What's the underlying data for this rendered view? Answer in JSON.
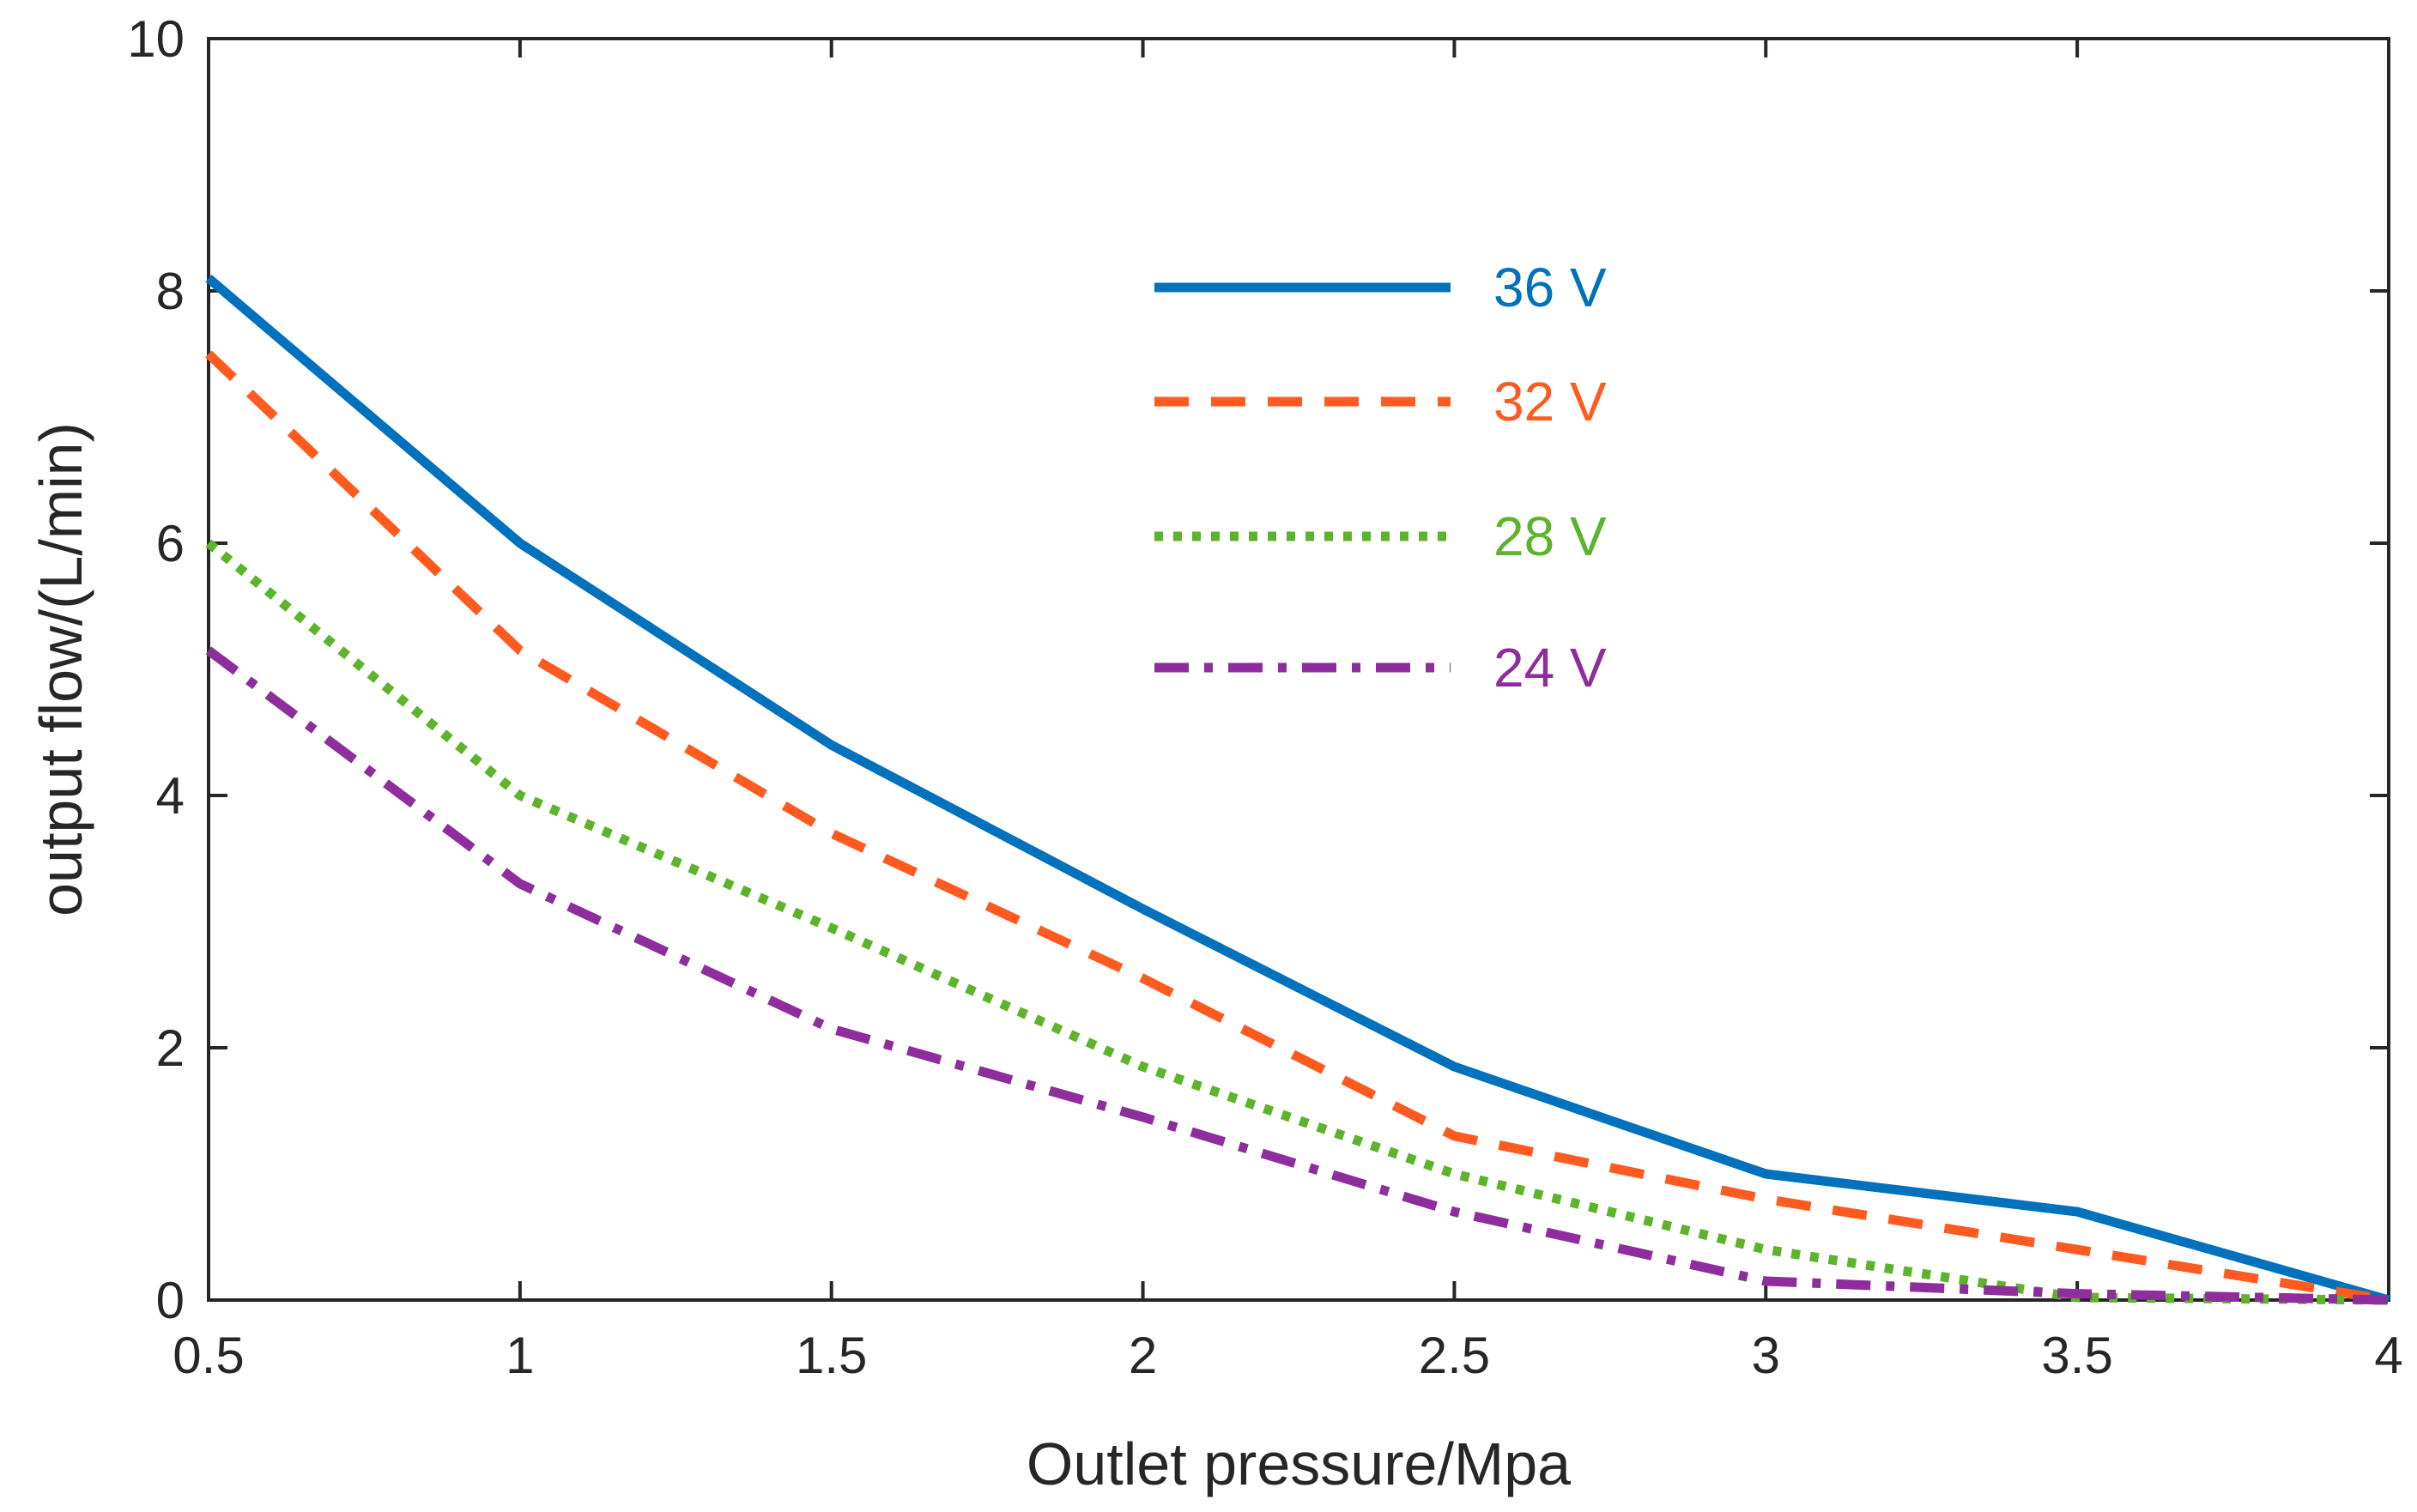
{
  "chart_data": {
    "type": "line",
    "title": "",
    "xlabel": "Outlet pressure/Mpa",
    "ylabel": "output flow/(L/min)",
    "xlim": [
      0.5,
      4
    ],
    "ylim": [
      0,
      10
    ],
    "xticks": [
      0.5,
      1,
      1.5,
      2,
      2.5,
      3,
      3.5,
      4
    ],
    "xtick_labels": [
      "0.5",
      "1",
      "1.5",
      "2",
      "2.5",
      "3",
      "3.5",
      "4"
    ],
    "yticks": [
      0,
      2,
      4,
      6,
      8,
      10
    ],
    "ytick_labels": [
      "0",
      "2",
      "4",
      "6",
      "8",
      "10"
    ],
    "grid": false,
    "legend_position": "top-center",
    "x": [
      0.5,
      1,
      1.5,
      2,
      2.5,
      3,
      3.5,
      4
    ],
    "series": [
      {
        "name": "36 V",
        "color": "#0072BD",
        "style": "solid",
        "values": [
          8.1,
          6.0,
          4.4,
          3.1,
          1.85,
          1.0,
          0.7,
          0.0
        ]
      },
      {
        "name": "32 V",
        "color": "#FF5A1F",
        "style": "dashed",
        "values": [
          7.5,
          5.15,
          3.7,
          2.55,
          1.3,
          0.8,
          0.4,
          0.0
        ]
      },
      {
        "name": "28 V",
        "color": "#5DB32A",
        "style": "dotted",
        "values": [
          6.0,
          4.0,
          2.95,
          1.85,
          1.0,
          0.4,
          0.02,
          0.0
        ]
      },
      {
        "name": "24 V",
        "color": "#8E2E9C",
        "style": "dash-dot",
        "values": [
          5.15,
          3.3,
          2.15,
          1.45,
          0.7,
          0.15,
          0.05,
          0.0
        ]
      }
    ]
  }
}
